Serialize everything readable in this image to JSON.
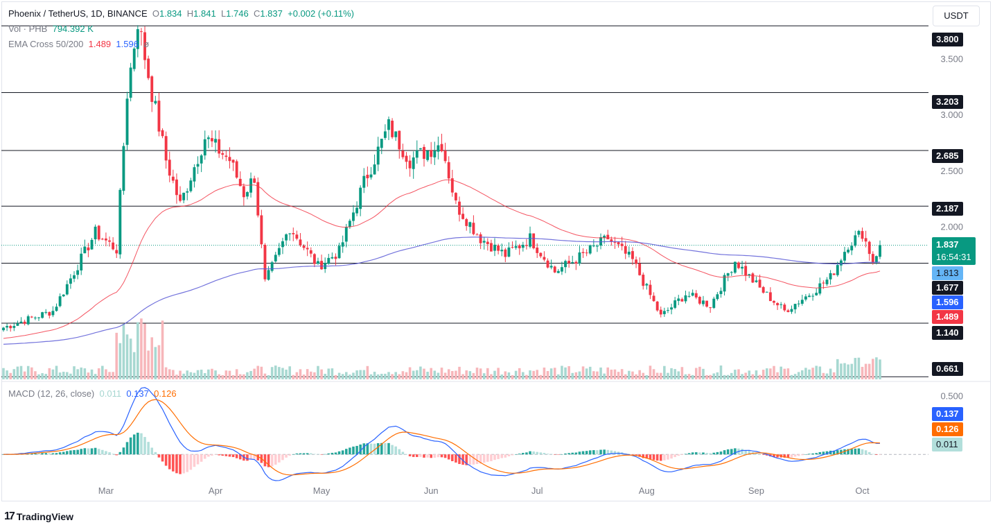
{
  "header": {
    "symbol": "Phoenix / TetherUS, 1D, BINANCE",
    "open_label": "O",
    "open": "1.834",
    "high_label": "H",
    "high": "1.841",
    "low_label": "L",
    "low": "1.746",
    "close_label": "C",
    "close": "1.837",
    "change": "+0.002 (+0.11%)",
    "vol_label": "Vol · PHB",
    "vol_value": "794.392 K",
    "ema_label": "EMA Cross 50/200",
    "ema50": "1.489",
    "ema200": "1.596",
    "ema_extra": "ø",
    "macd_label": "MACD (12, 26, close)",
    "macd_hist": "0.011",
    "macd_line": "0.137",
    "macd_signal": "0.126",
    "currency": "USDT",
    "brand": "TradingView",
    "brand_logo": "17"
  },
  "price_tags": {
    "last": "1.837",
    "countdown": "16:54:31",
    "t1813": "1.813",
    "t1677": "1.677",
    "t1596": "1.596",
    "t1489": "1.489",
    "t1140": "1.140",
    "t3800": "3.800",
    "t3203": "3.203",
    "t2685": "2.685",
    "t2187": "2.187",
    "t0661": "0.661",
    "m0137": "0.137",
    "m0126": "0.126",
    "m0011": "0.011"
  },
  "colors": {
    "up": "#089981",
    "down": "#f23645",
    "ema50": "#f23645",
    "ema200": "#5b5bd6",
    "macd": "#2962ff",
    "signal": "#ff6d00",
    "hline": "#131722",
    "axis_text": "#787b86"
  },
  "chart_data": [
    {
      "type": "candlestick",
      "title": "Phoenix / TetherUS, 1D, BINANCE",
      "x_labels": [
        "Mar",
        "Apr",
        "May",
        "Jun",
        "Jul",
        "Aug",
        "Sep",
        "Oct"
      ],
      "y_ticks": [
        "2.000",
        "2.500",
        "3.000",
        "3.500"
      ],
      "ylim": [
        0.65,
        4.0
      ],
      "horizontal_levels": [
        3.8,
        3.203,
        2.685,
        2.187,
        1.677,
        1.14,
        0.661
      ],
      "key_points": [
        {
          "date": "Feb 01",
          "price": 1.1
        },
        {
          "date": "Feb 15",
          "price": 1.25
        },
        {
          "date": "Feb 27",
          "price": 1.95
        },
        {
          "date": "Mar 04",
          "price": 1.8
        },
        {
          "date": "Mar 07",
          "price": 3.2
        },
        {
          "date": "Mar 10",
          "price": 3.85
        },
        {
          "date": "Mar 14",
          "price": 3.2
        },
        {
          "date": "Mar 18",
          "price": 2.6
        },
        {
          "date": "Mar 22",
          "price": 2.2
        },
        {
          "date": "Mar 29",
          "price": 2.8
        },
        {
          "date": "Apr 05",
          "price": 2.6
        },
        {
          "date": "Apr 09",
          "price": 2.3
        },
        {
          "date": "Apr 12",
          "price": 2.45
        },
        {
          "date": "Apr 15",
          "price": 1.5
        },
        {
          "date": "Apr 22",
          "price": 2.0
        },
        {
          "date": "Apr 30",
          "price": 1.65
        },
        {
          "date": "May 06",
          "price": 1.78
        },
        {
          "date": "May 13",
          "price": 2.4
        },
        {
          "date": "May 20",
          "price": 2.9
        },
        {
          "date": "May 26",
          "price": 2.6
        },
        {
          "date": "Jun 04",
          "price": 2.75
        },
        {
          "date": "Jun 08",
          "price": 2.2
        },
        {
          "date": "Jun 15",
          "price": 1.9
        },
        {
          "date": "Jun 22",
          "price": 1.75
        },
        {
          "date": "Jun 29",
          "price": 1.9
        },
        {
          "date": "Jul 06",
          "price": 1.6
        },
        {
          "date": "Jul 14",
          "price": 1.75
        },
        {
          "date": "Jul 21",
          "price": 1.9
        },
        {
          "date": "Jul 28",
          "price": 1.7
        },
        {
          "date": "Aug 05",
          "price": 1.2
        },
        {
          "date": "Aug 12",
          "price": 1.4
        },
        {
          "date": "Aug 19",
          "price": 1.3
        },
        {
          "date": "Aug 26",
          "price": 1.7
        },
        {
          "date": "Sep 02",
          "price": 1.45
        },
        {
          "date": "Sep 09",
          "price": 1.25
        },
        {
          "date": "Sep 16",
          "price": 1.4
        },
        {
          "date": "Sep 22",
          "price": 1.55
        },
        {
          "date": "Sep 27",
          "price": 1.85
        },
        {
          "date": "Oct 01",
          "price": 1.95
        },
        {
          "date": "Oct 04",
          "price": 1.7
        },
        {
          "date": "Oct 06",
          "price": 1.837
        }
      ],
      "series": [
        {
          "name": "EMA 50",
          "last": 1.489
        },
        {
          "name": "EMA 200",
          "last": 1.596
        }
      ],
      "volume_last": "794.392 K"
    },
    {
      "type": "line",
      "title": "MACD (12, 26, close)",
      "y_ticks": [
        "0.500"
      ],
      "ylim": [
        -0.4,
        0.6
      ],
      "series": [
        {
          "name": "MACD",
          "last": 0.137
        },
        {
          "name": "Signal",
          "last": 0.126
        },
        {
          "name": "Histogram",
          "last": 0.011
        }
      ]
    }
  ]
}
